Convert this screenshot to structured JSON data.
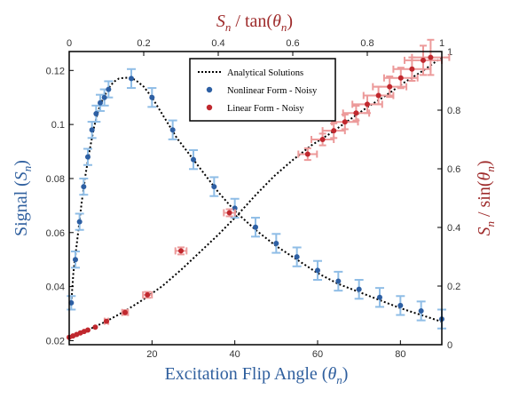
{
  "colors": {
    "axis": "#000000",
    "blue_title": "#2f5f9e",
    "red_title": "#9e2b2b",
    "blue_point": "#2d5fa3",
    "blue_error": "#8fbde6",
    "red_point": "#c0282e",
    "red_error": "#ec9a9a",
    "curve": "#000000"
  },
  "chart_data": {
    "type": "scatter",
    "x_bottom": {
      "label": "Excitation Flip Angle (θ_n)",
      "label_base": "Excitation Flip Angle (",
      "label_var": "θ",
      "label_sub": "n",
      "label_end": ")",
      "range": [
        0,
        90
      ],
      "ticks": [
        20,
        40,
        60,
        80
      ]
    },
    "y_left": {
      "label": "Signal (S_n)",
      "label_base": "Signal (",
      "label_var": "S",
      "label_sub": "n",
      "label_end": ")",
      "range": [
        0.0185,
        0.127
      ],
      "ticks": [
        0.02,
        0.04,
        0.06,
        0.08,
        0.1,
        0.12
      ],
      "tick_labels": [
        "0.02",
        "0.04",
        "0.06",
        "0.08",
        "0.1",
        "0.12"
      ]
    },
    "x_top": {
      "label": "S_n / tan(θ_n)",
      "label_var": "S",
      "label_sub": "n",
      "label_mid": " / tan(",
      "label_var2": "θ",
      "label_sub2": "n",
      "label_end": ")",
      "range": [
        0,
        1
      ],
      "ticks": [
        0,
        0.2,
        0.4,
        0.6,
        0.8,
        1
      ],
      "tick_labels": [
        "0",
        "0.2",
        "0.4",
        "0.6",
        "0.8",
        "1"
      ]
    },
    "y_right": {
      "label": "S_n / sin(θ_n)",
      "label_var": "S",
      "label_sub": "n",
      "label_mid": " / sin(",
      "label_var2": "θ",
      "label_sub2": "n",
      "label_end": ")",
      "range": [
        0,
        1
      ],
      "ticks": [
        0,
        0.2,
        0.4,
        0.6,
        0.8,
        1
      ],
      "tick_labels": [
        "0",
        "0.2",
        "0.4",
        "0.6",
        "0.8",
        "1"
      ]
    },
    "legend": {
      "placement": "top-center",
      "entries": [
        {
          "label": "Analytical Solutions",
          "kind": "dotted-line"
        },
        {
          "label": "Nonlinear Form - Noisy",
          "kind": "blue-dot"
        },
        {
          "label": "Linear Form - Noisy",
          "kind": "red-dot"
        }
      ]
    },
    "series": [
      {
        "name": "Nonlinear Form - Noisy",
        "axes": "bottom-left",
        "x": [
          0.5,
          1.5,
          2.5,
          3.5,
          4.5,
          5.5,
          6.5,
          7.5,
          8.5,
          9.5,
          15,
          20,
          25,
          30,
          35,
          40,
          45,
          50,
          55,
          60,
          65,
          70,
          75,
          80,
          85,
          90
        ],
        "y": [
          0.034,
          0.05,
          0.064,
          0.077,
          0.088,
          0.098,
          0.104,
          0.108,
          0.11,
          0.113,
          0.117,
          0.11,
          0.098,
          0.087,
          0.077,
          0.069,
          0.062,
          0.056,
          0.051,
          0.046,
          0.042,
          0.039,
          0.036,
          0.033,
          0.031,
          0.028
        ],
        "err": [
          0.0025,
          0.003,
          0.003,
          0.003,
          0.003,
          0.003,
          0.003,
          0.003,
          0.003,
          0.003,
          0.0035,
          0.0035,
          0.0035,
          0.0035,
          0.0035,
          0.0035,
          0.0035,
          0.0035,
          0.0035,
          0.0035,
          0.0035,
          0.0035,
          0.0035,
          0.0035,
          0.0035,
          0.0035
        ]
      },
      {
        "name": "Linear Form - Noisy",
        "axes": "top-right",
        "x": [
          0.0,
          0.01,
          0.02,
          0.03,
          0.04,
          0.05,
          0.07,
          0.1,
          0.15,
          0.21,
          0.3,
          0.43,
          0.64,
          0.68,
          0.71,
          0.74,
          0.77,
          0.8,
          0.83,
          0.86,
          0.89,
          0.92,
          0.95,
          0.97
        ],
        "y": [
          0.025,
          0.03,
          0.035,
          0.04,
          0.045,
          0.05,
          0.06,
          0.08,
          0.11,
          0.17,
          0.32,
          0.45,
          0.65,
          0.7,
          0.73,
          0.76,
          0.79,
          0.82,
          0.85,
          0.88,
          0.91,
          0.94,
          0.97,
          0.98
        ],
        "xerr": [
          0.0,
          0.0,
          0.0,
          0.0,
          0.0,
          0.0,
          0.0,
          0.005,
          0.008,
          0.012,
          0.015,
          0.015,
          0.025,
          0.03,
          0.03,
          0.035,
          0.035,
          0.04,
          0.04,
          0.045,
          0.045,
          0.05,
          0.05,
          0.05
        ],
        "yerr": [
          0.0,
          0.0,
          0.0,
          0.0,
          0.0,
          0.0,
          0.0,
          0.0,
          0.008,
          0.01,
          0.012,
          0.012,
          0.02,
          0.02,
          0.025,
          0.025,
          0.025,
          0.03,
          0.03,
          0.035,
          0.035,
          0.04,
          0.05,
          0.06
        ]
      }
    ],
    "curves": [
      {
        "name": "Analytical Solutions",
        "axes": "bottom-left",
        "x": [
          0.5,
          1,
          2,
          3,
          4,
          5,
          6,
          7,
          8,
          9,
          10,
          11,
          12,
          13,
          14,
          15,
          16,
          18,
          20,
          22,
          24,
          26,
          28,
          30,
          33,
          36,
          40,
          45,
          50,
          55,
          60,
          65,
          70,
          75,
          80,
          85,
          90
        ],
        "y": [
          0.034,
          0.045,
          0.058,
          0.071,
          0.082,
          0.091,
          0.099,
          0.105,
          0.109,
          0.112,
          0.1145,
          0.116,
          0.117,
          0.1172,
          0.1173,
          0.117,
          0.1165,
          0.114,
          0.11,
          0.105,
          0.1,
          0.095,
          0.091,
          0.087,
          0.081,
          0.075,
          0.068,
          0.061,
          0.055,
          0.05,
          0.045,
          0.041,
          0.038,
          0.035,
          0.032,
          0.0295,
          0.027
        ]
      },
      {
        "name": "Analytical Solutions",
        "axes": "top-right",
        "x": [
          0.0,
          0.05,
          0.1,
          0.15,
          0.2,
          0.25,
          0.3,
          0.35,
          0.4,
          0.45,
          0.5,
          0.55,
          0.6,
          0.65,
          0.7,
          0.75,
          0.8,
          0.85,
          0.9,
          0.95,
          1.0
        ],
        "y": [
          0.025,
          0.05,
          0.08,
          0.115,
          0.155,
          0.2,
          0.255,
          0.315,
          0.375,
          0.44,
          0.51,
          0.575,
          0.63,
          0.68,
          0.72,
          0.765,
          0.81,
          0.85,
          0.895,
          0.935,
          0.98
        ]
      }
    ]
  }
}
